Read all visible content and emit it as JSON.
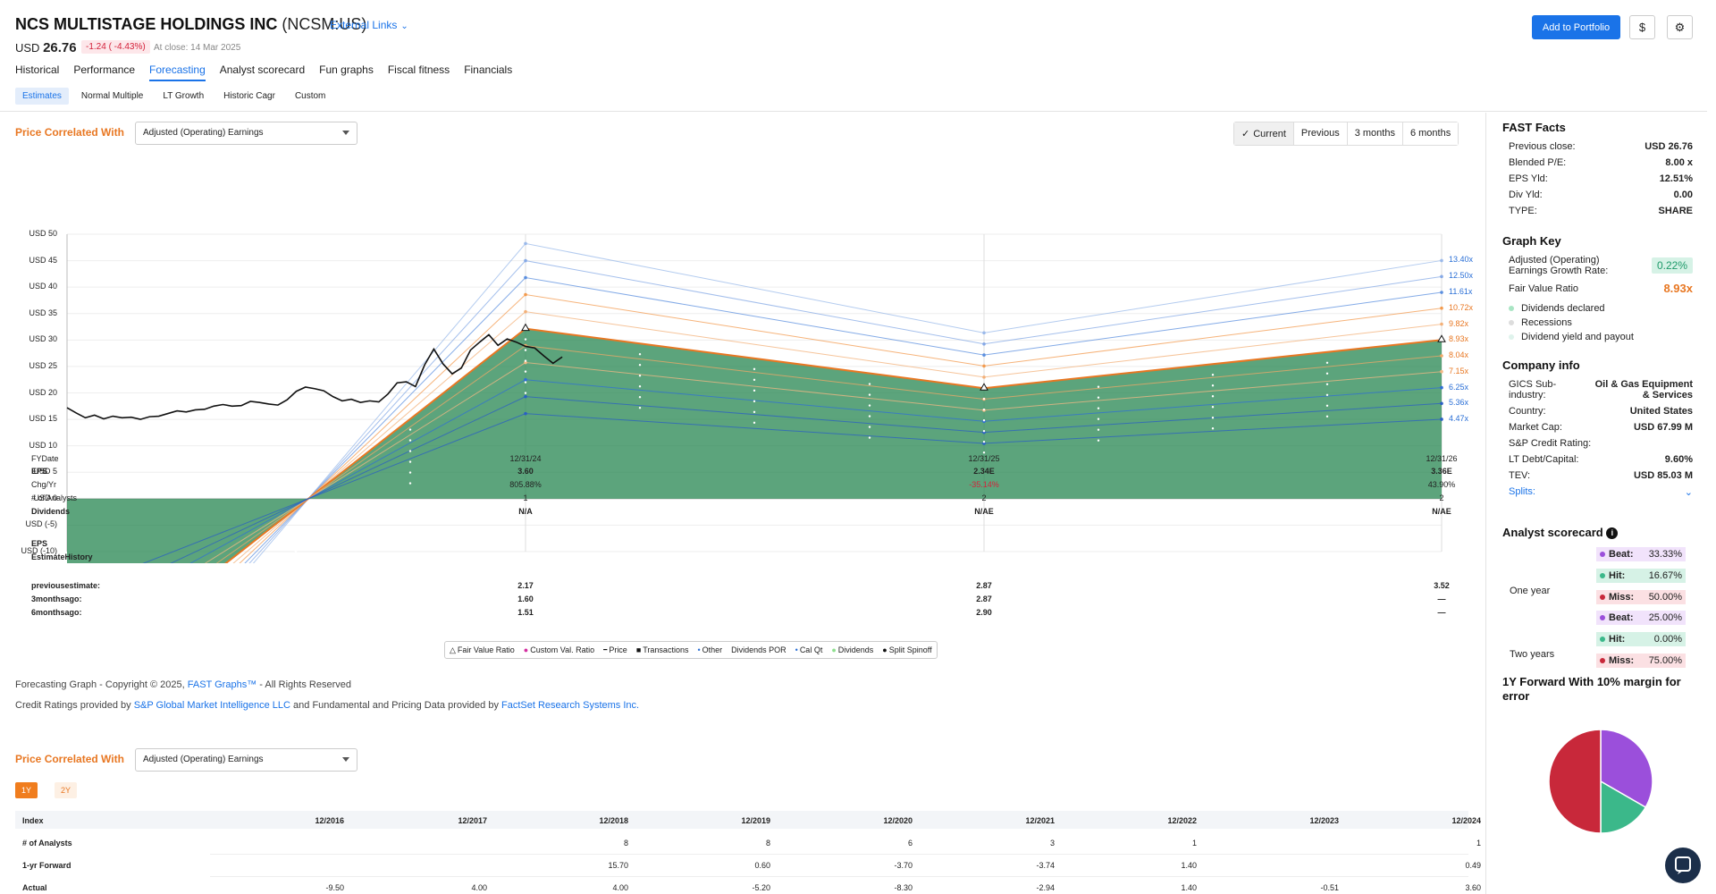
{
  "header": {
    "company": "NCS MULTISTAGE HOLDINGS INC",
    "ticker": "(NCSM:US)",
    "external_links": "External Links",
    "currency": "USD",
    "price": "26.76",
    "change": "-1.24 ( -4.43%)",
    "at_close": "At close: 14 Mar 2025",
    "add_portfolio": "Add to Portfolio",
    "currency_btn": "$",
    "settings_icon": "gear-icon",
    "tabs": [
      "Historical",
      "Performance",
      "Forecasting",
      "Analyst scorecard",
      "Fun graphs",
      "Fiscal fitness",
      "Financials"
    ],
    "active_tab": "Forecasting",
    "subtabs": [
      "Estimates",
      "Normal Multiple",
      "LT Growth",
      "Historic Cagr",
      "Custom"
    ],
    "active_subtab": "Estimates"
  },
  "forecast": {
    "price_correlated_with": "Price Correlated With",
    "select_value": "Adjusted (Operating) Earnings",
    "periods": [
      "Current",
      "Previous",
      "3 months",
      "6 months"
    ],
    "active_period": "Current",
    "fydate_label": "FYDate"
  },
  "chart_data": {
    "type": "area",
    "ylim": [
      -10,
      50
    ],
    "y_ticks": [
      "USD 50",
      "USD 45",
      "USD 40",
      "USD 35",
      "USD 30",
      "USD 25",
      "USD 20",
      "USD 15",
      "USD 10",
      "USD 5",
      "USD 0",
      "USD (-5)",
      "USD (-10)"
    ],
    "x_labels": [
      "12/31/24",
      "12/31/25",
      "12/31/26"
    ],
    "multiples": [
      "13.40x",
      "12.50x",
      "11.61x",
      "10.72x",
      "9.82x",
      "8.93x",
      "8.04x",
      "7.15x",
      "6.25x",
      "5.36x",
      "4.47x"
    ],
    "fair_value_eps": [
      -4.0,
      3.6,
      2.34,
      3.36
    ],
    "fair_value_ratio": 8.93,
    "price_series": [
      {
        "t": 0.0,
        "p": 17.2
      },
      {
        "t": 0.02,
        "p": 16.2
      },
      {
        "t": 0.04,
        "p": 15.3
      },
      {
        "t": 0.06,
        "p": 15.8
      },
      {
        "t": 0.08,
        "p": 15.1
      },
      {
        "t": 0.1,
        "p": 15.6
      },
      {
        "t": 0.12,
        "p": 15.3
      },
      {
        "t": 0.14,
        "p": 15.4
      },
      {
        "t": 0.16,
        "p": 15.0
      },
      {
        "t": 0.18,
        "p": 15.5
      },
      {
        "t": 0.2,
        "p": 15.6
      },
      {
        "t": 0.22,
        "p": 16.1
      },
      {
        "t": 0.24,
        "p": 16.6
      },
      {
        "t": 0.26,
        "p": 16.4
      },
      {
        "t": 0.28,
        "p": 16.8
      },
      {
        "t": 0.3,
        "p": 16.9
      },
      {
        "t": 0.32,
        "p": 17.5
      },
      {
        "t": 0.34,
        "p": 17.8
      },
      {
        "t": 0.36,
        "p": 17.5
      },
      {
        "t": 0.38,
        "p": 17.6
      },
      {
        "t": 0.4,
        "p": 18.4
      },
      {
        "t": 0.42,
        "p": 18.2
      },
      {
        "t": 0.44,
        "p": 17.9
      },
      {
        "t": 0.46,
        "p": 17.7
      },
      {
        "t": 0.48,
        "p": 18.7
      },
      {
        "t": 0.5,
        "p": 20.3
      },
      {
        "t": 0.52,
        "p": 21.1
      },
      {
        "t": 0.54,
        "p": 20.8
      },
      {
        "t": 0.56,
        "p": 20.4
      },
      {
        "t": 0.58,
        "p": 19.3
      },
      {
        "t": 0.6,
        "p": 18.5
      },
      {
        "t": 0.62,
        "p": 18.8
      },
      {
        "t": 0.64,
        "p": 18.2
      },
      {
        "t": 0.66,
        "p": 18.5
      },
      {
        "t": 0.68,
        "p": 18.3
      },
      {
        "t": 0.7,
        "p": 19.8
      },
      {
        "t": 0.72,
        "p": 21.9
      },
      {
        "t": 0.74,
        "p": 22.1
      },
      {
        "t": 0.76,
        "p": 21.2
      },
      {
        "t": 0.78,
        "p": 25.3
      },
      {
        "t": 0.8,
        "p": 28.3
      },
      {
        "t": 0.82,
        "p": 25.5
      },
      {
        "t": 0.84,
        "p": 23.6
      },
      {
        "t": 0.86,
        "p": 24.7
      },
      {
        "t": 0.88,
        "p": 28.1
      },
      {
        "t": 0.9,
        "p": 29.6
      },
      {
        "t": 0.92,
        "p": 31.0
      },
      {
        "t": 0.94,
        "p": 29.0
      },
      {
        "t": 0.96,
        "p": 30.2
      },
      {
        "t": 0.98,
        "p": 29.6
      },
      {
        "t": 1.0,
        "p": 28.8
      },
      {
        "t": 1.02,
        "p": 28.5
      },
      {
        "t": 1.04,
        "p": 27.0
      },
      {
        "t": 1.06,
        "p": 25.6
      },
      {
        "t": 1.08,
        "p": 26.8
      }
    ]
  },
  "estimates": {
    "rows": [
      {
        "label": "EPS",
        "values": [
          "3.60",
          "2.34E",
          "3.36E"
        ]
      },
      {
        "label": "Chg/Yr",
        "values": [
          "805.88%",
          "-35.14%",
          "43.90%"
        ]
      },
      {
        "label": "# of Analysts",
        "values": [
          "1",
          "2",
          "2"
        ]
      },
      {
        "label": "Dividends",
        "values": [
          "N/A",
          "N/AE",
          "N/AE"
        ]
      }
    ],
    "eps_history_label1": "EPS",
    "eps_history_label2": "EstimateHistory",
    "history": [
      {
        "label": "previousestimate:",
        "values": [
          "2.17",
          "2.87",
          "3.52"
        ]
      },
      {
        "label": "3monthsago:",
        "values": [
          "1.60",
          "2.87",
          "—"
        ]
      },
      {
        "label": "6monthsago:",
        "values": [
          "1.51",
          "2.90",
          "—"
        ]
      }
    ]
  },
  "legend": [
    "Fair Value Ratio",
    "Custom Val. Ratio",
    "Price",
    "Transactions",
    "Other",
    "Dividends POR",
    "Cal Qt",
    "Dividends",
    "Split Spinoff"
  ],
  "footer": {
    "line1a": "Forecasting Graph - Copyright © 2025,",
    "line1link": "FAST Graphs™",
    "line1b": "- All Rights Reserved",
    "line2a": "Credit Ratings provided by",
    "line2link1": "S&P Global Market Intelligence LLC",
    "line2b": "and Fundamental and Pricing Data provided by",
    "line2link2": "FactSet Research Systems Inc."
  },
  "table": {
    "price_correlated_with": "Price Correlated With",
    "select_value": "Adjusted (Operating) Earnings",
    "year_buttons": [
      "1Y",
      "2Y"
    ],
    "headers": [
      "Index",
      "12/2016",
      "12/2017",
      "12/2018",
      "12/2019",
      "12/2020",
      "12/2021",
      "12/2022",
      "12/2023",
      "12/2024"
    ],
    "rows": [
      {
        "label": "# of Analysts",
        "values": [
          "",
          "",
          "8",
          "8",
          "6",
          "3",
          "1",
          "",
          "1"
        ]
      },
      {
        "label": "1-yr Forward",
        "values": [
          "",
          "",
          "15.70",
          "0.60",
          "-3.70",
          "-3.74",
          "1.40",
          "",
          "0.49"
        ]
      },
      {
        "label": "Actual",
        "values": [
          "-9.50",
          "4.00",
          "4.00",
          "-5.20",
          "-8.30",
          "-2.94",
          "1.40",
          "-0.51",
          "3.60"
        ]
      }
    ]
  },
  "sidebar": {
    "fast_facts_title": "FAST Facts",
    "fast_facts": [
      {
        "k": "Previous close:",
        "v": "USD 26.76"
      },
      {
        "k": "Blended P/E:",
        "v": "8.00 x"
      },
      {
        "k": "EPS Yld:",
        "v": "12.51%"
      },
      {
        "k": "Div Yld:",
        "v": "0.00"
      },
      {
        "k": "TYPE:",
        "v": "SHARE"
      }
    ],
    "graph_key_title": "Graph Key",
    "growth_label": "Adjusted (Operating) Earnings Growth Rate:",
    "growth_value": "0.22%",
    "fvr_label": "Fair Value Ratio",
    "fvr_value": "8.93x",
    "key_items": [
      "Dividends declared",
      "Recessions",
      "Dividend yield and payout"
    ],
    "company_info_title": "Company info",
    "gics_label": "GICS Sub-industry:",
    "gics_value": "Oil & Gas Equipment & Services",
    "company_info": [
      {
        "k": "Country:",
        "v": "United States"
      },
      {
        "k": "Market Cap:",
        "v": "USD 67.99 M"
      },
      {
        "k": "S&P Credit Rating:",
        "v": ""
      },
      {
        "k": "LT Debt/Capital:",
        "v": "9.60%"
      },
      {
        "k": "TEV:",
        "v": "USD 85.03 M"
      }
    ],
    "splits": "Splits:",
    "analyst_title": "Analyst scorecard",
    "one_year": "One year",
    "two_years": "Two years",
    "one_year_vals": [
      {
        "k": "Beat:",
        "v": "33.33%"
      },
      {
        "k": "Hit:",
        "v": "16.67%"
      },
      {
        "k": "Miss:",
        "v": "50.00%"
      }
    ],
    "two_year_vals": [
      {
        "k": "Beat:",
        "v": "25.00%"
      },
      {
        "k": "Hit:",
        "v": "0.00%"
      },
      {
        "k": "Miss:",
        "v": "75.00%"
      }
    ],
    "forward_title": "1Y Forward With 10% margin for error",
    "pie": [
      {
        "name": "Beat",
        "value": 33.33,
        "color": "#9b4fdb"
      },
      {
        "name": "Hit",
        "value": 16.67,
        "color": "#3bb88a"
      },
      {
        "name": "Miss",
        "value": 50.0,
        "color": "#c8283a"
      }
    ]
  }
}
